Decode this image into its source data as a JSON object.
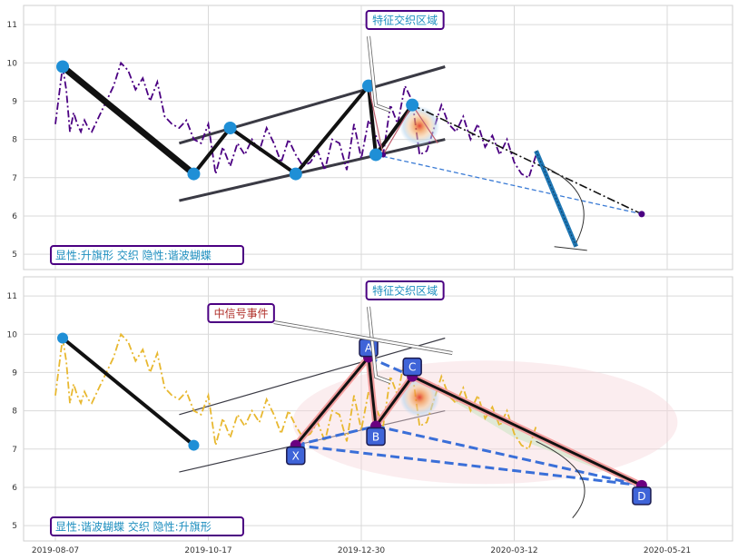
{
  "chart_data": {
    "type": "line",
    "x_ticks": [
      "2019-08-07",
      "2019-10-17",
      "2019-12-30",
      "2020-03-12",
      "2020-05-21"
    ],
    "y_ticks": [
      5,
      6,
      7,
      8,
      9,
      10,
      11
    ],
    "ylim": [
      4.6,
      11.5
    ],
    "xlim": [
      0,
      176
    ],
    "price_series": {
      "x": [
        0,
        2,
        3,
        4,
        5,
        6,
        7,
        8,
        9,
        10,
        12,
        14,
        16,
        18,
        20,
        22,
        24,
        26,
        28,
        30,
        32,
        34,
        36,
        38,
        40,
        42,
        44,
        46,
        48,
        50,
        52,
        54,
        56,
        58,
        60,
        62,
        64,
        66,
        68,
        70,
        72,
        74,
        76,
        78,
        80,
        82,
        84,
        86,
        88,
        90,
        92,
        94,
        96,
        98,
        100,
        102,
        104,
        106,
        108,
        110,
        112,
        114,
        116,
        118,
        120,
        122,
        124,
        126,
        128,
        130,
        132
      ],
      "y": [
        8.4,
        9.9,
        9.3,
        8.2,
        8.7,
        8.4,
        8.2,
        8.5,
        8.3,
        8.2,
        8.6,
        9.0,
        9.4,
        10.0,
        9.8,
        9.3,
        9.6,
        9.0,
        9.5,
        8.6,
        8.4,
        8.3,
        8.5,
        8.0,
        7.9,
        8.4,
        7.1,
        7.8,
        7.3,
        7.9,
        7.6,
        8.0,
        7.7,
        8.3,
        7.9,
        7.4,
        8.0,
        7.6,
        7.3,
        7.4,
        7.7,
        7.2,
        8.0,
        7.9,
        7.2,
        8.4,
        7.5,
        8.5,
        8.1,
        7.6,
        8.9,
        8.4,
        9.4,
        9.0,
        7.6,
        7.7,
        8.3,
        8.9,
        8.4,
        8.2,
        8.6,
        8.0,
        8.4,
        7.8,
        8.1,
        7.6,
        8.0,
        7.4,
        7.1,
        7.0,
        7.6
      ]
    },
    "panels": [
      {
        "price_color": "#4b0082",
        "callout": "特征交织区域",
        "legend": "显性:升旗形 交织 隐性:谐波蝴蝶",
        "pattern_points": {
          "x": [
            2,
            38,
            48,
            66,
            86,
            88,
            98
          ],
          "y": [
            9.9,
            7.1,
            8.3,
            7.1,
            9.4,
            7.6,
            8.9
          ]
        },
        "channel_upper": {
          "x": [
            34,
            107
          ],
          "y": [
            7.9,
            9.9
          ]
        },
        "channel_lower": {
          "x": [
            34,
            107
          ],
          "y": [
            6.4,
            8.0
          ]
        },
        "projection_dashdot": {
          "x": [
            98,
            161
          ],
          "y": [
            8.9,
            6.05
          ]
        },
        "projection_dashed": {
          "x": [
            88,
            161
          ],
          "y": [
            7.6,
            6.05
          ]
        },
        "target_point": {
          "x": 161,
          "y": 6.05
        }
      },
      {
        "price_color": "#e8b830",
        "callout": "特征交织区域",
        "signal_callout": "中信号事件",
        "legend": "显性:谐波蝴蝶 交织 隐性:升旗形",
        "pattern_points": {
          "labels": [
            "X",
            "A",
            "B",
            "C",
            "D"
          ],
          "x": [
            66,
            86,
            88,
            98,
            161
          ],
          "y": [
            7.1,
            9.4,
            7.6,
            8.9,
            6.05
          ]
        },
        "flag_leg": {
          "x": [
            2,
            38
          ],
          "y": [
            9.9,
            7.1
          ]
        },
        "channel_upper": {
          "x": [
            34,
            107
          ],
          "y": [
            7.9,
            9.9
          ]
        },
        "channel_lower": {
          "x": [
            34,
            107
          ],
          "y": [
            6.4,
            8.0
          ]
        }
      }
    ]
  }
}
